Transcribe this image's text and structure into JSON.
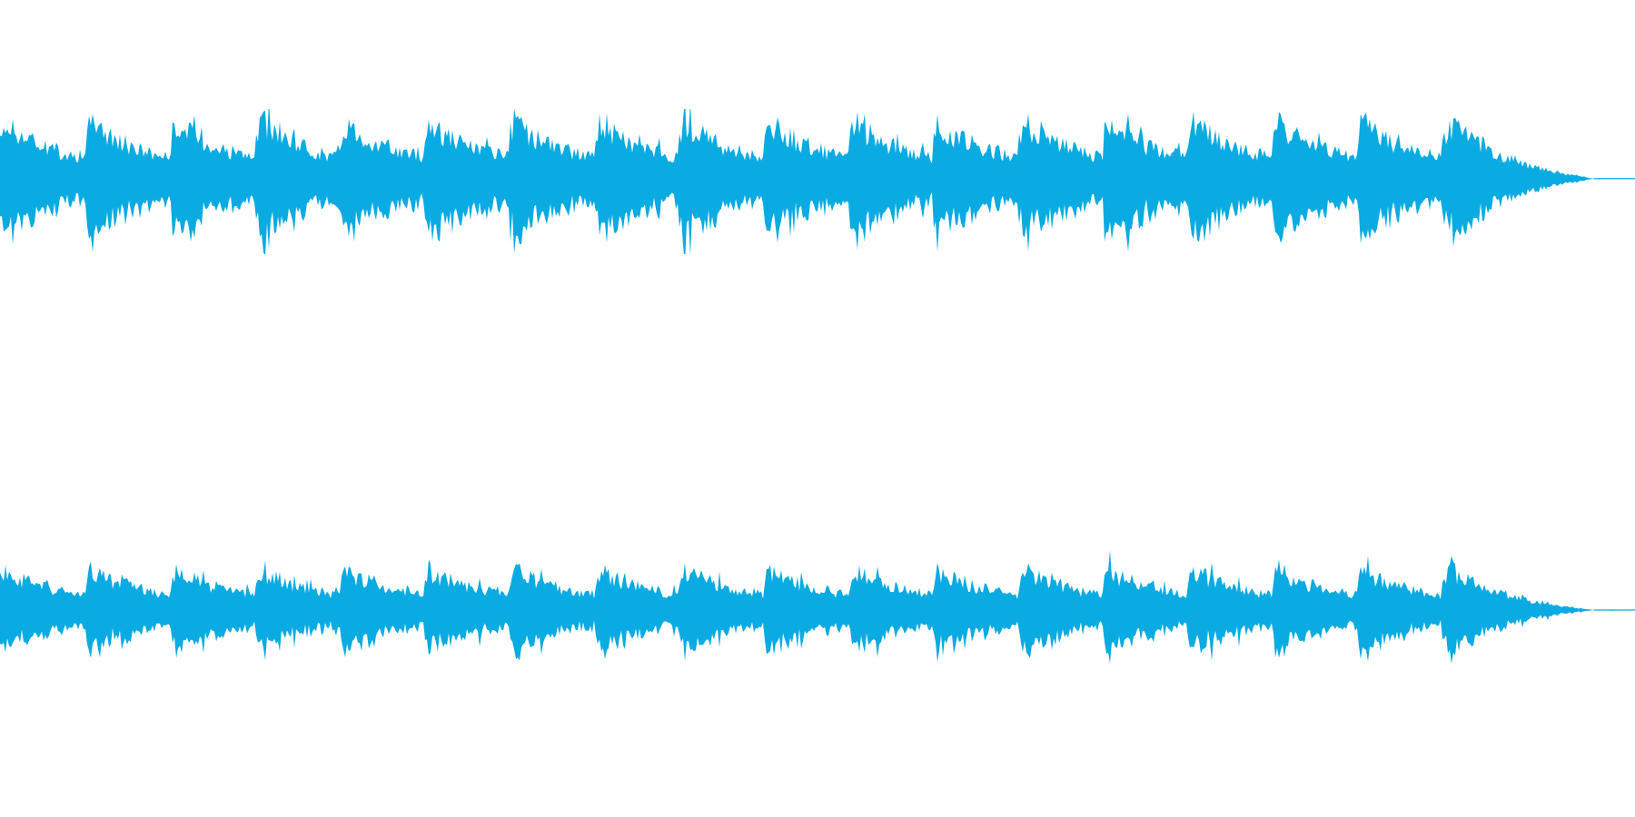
{
  "waveform": {
    "color": "#0aabe2",
    "background": "#ffffff",
    "channel_count": 2,
    "channels": [
      {
        "id": "left",
        "peak_level": 0.95,
        "sustain_level": 0.22
      },
      {
        "id": "right",
        "peak_level": 0.72,
        "sustain_level": 0.17
      }
    ],
    "phrase_count": 19,
    "fade_out": true
  }
}
